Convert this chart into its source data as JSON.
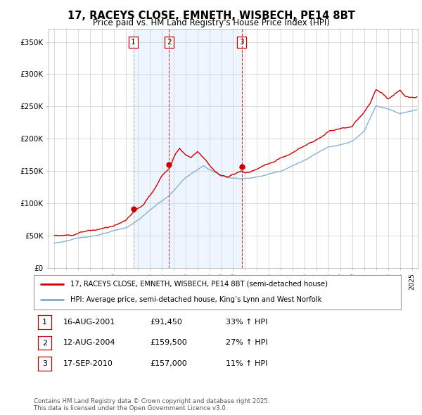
{
  "title_line1": "17, RACEYS CLOSE, EMNETH, WISBECH, PE14 8BT",
  "title_line2": "Price paid vs. HM Land Registry's House Price Index (HPI)",
  "yticks": [
    0,
    50000,
    100000,
    150000,
    200000,
    250000,
    300000,
    350000
  ],
  "ytick_labels": [
    "£0",
    "£50K",
    "£100K",
    "£150K",
    "£200K",
    "£250K",
    "£300K",
    "£350K"
  ],
  "ylim": [
    0,
    370000
  ],
  "xlim_start": 1994.5,
  "xlim_end": 2025.5,
  "sale_dates": [
    2001.62,
    2004.62,
    2010.71
  ],
  "sale_prices": [
    91450,
    159500,
    157000
  ],
  "sale_labels": [
    "1",
    "2",
    "3"
  ],
  "hpi_line_color": "#7aaad0",
  "price_line_color": "#cc0000",
  "dashed_line_color_gray": "#aaaaaa",
  "dashed_line_color_red": "#cc0000",
  "shade_color": "#ddeeff",
  "legend_label_red": "17, RACEYS CLOSE, EMNETH, WISBECH, PE14 8BT (semi-detached house)",
  "legend_label_blue": "HPI: Average price, semi-detached house, King’s Lynn and West Norfolk",
  "table_rows": [
    [
      "1",
      "16-AUG-2001",
      "£91,450",
      "33% ↑ HPI"
    ],
    [
      "2",
      "12-AUG-2004",
      "£159,500",
      "27% ↑ HPI"
    ],
    [
      "3",
      "17-SEP-2010",
      "£157,000",
      "11% ↑ HPI"
    ]
  ],
  "footnote": "Contains HM Land Registry data © Crown copyright and database right 2025.\nThis data is licensed under the Open Government Licence v3.0.",
  "background_color": "#ffffff",
  "grid_color": "#cccccc"
}
